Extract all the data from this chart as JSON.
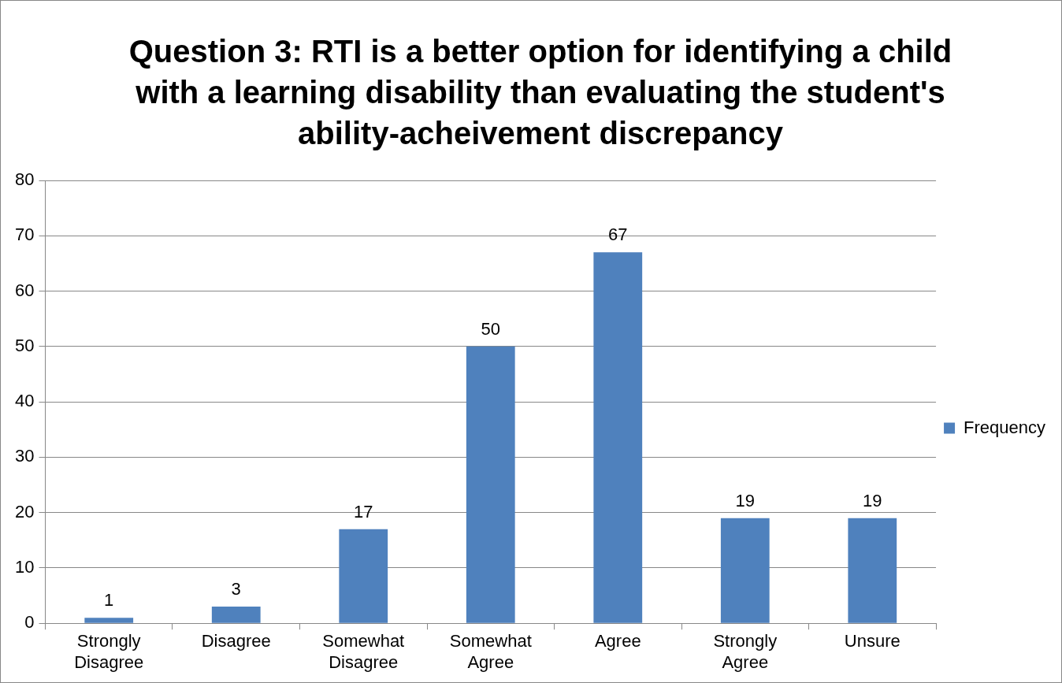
{
  "chart_data": {
    "type": "bar",
    "title": "Question 3: RTI is a better option for identifying a child with a learning disability than evaluating the student's ability-acheivement discrepancy",
    "categories": [
      "Strongly Disagree",
      "Disagree",
      "Somewhat Disagree",
      "Somewhat Agree",
      "Agree",
      "Strongly Agree",
      "Unsure"
    ],
    "series": [
      {
        "name": "Frequency",
        "color": "#4f81bd",
        "values": [
          1,
          3,
          17,
          50,
          67,
          19,
          19
        ]
      }
    ],
    "ylim": [
      0,
      80
    ],
    "yticks": [
      0,
      10,
      20,
      30,
      40,
      50,
      60,
      70,
      80
    ],
    "grid": "y",
    "legend": "right",
    "data_labels": true
  }
}
